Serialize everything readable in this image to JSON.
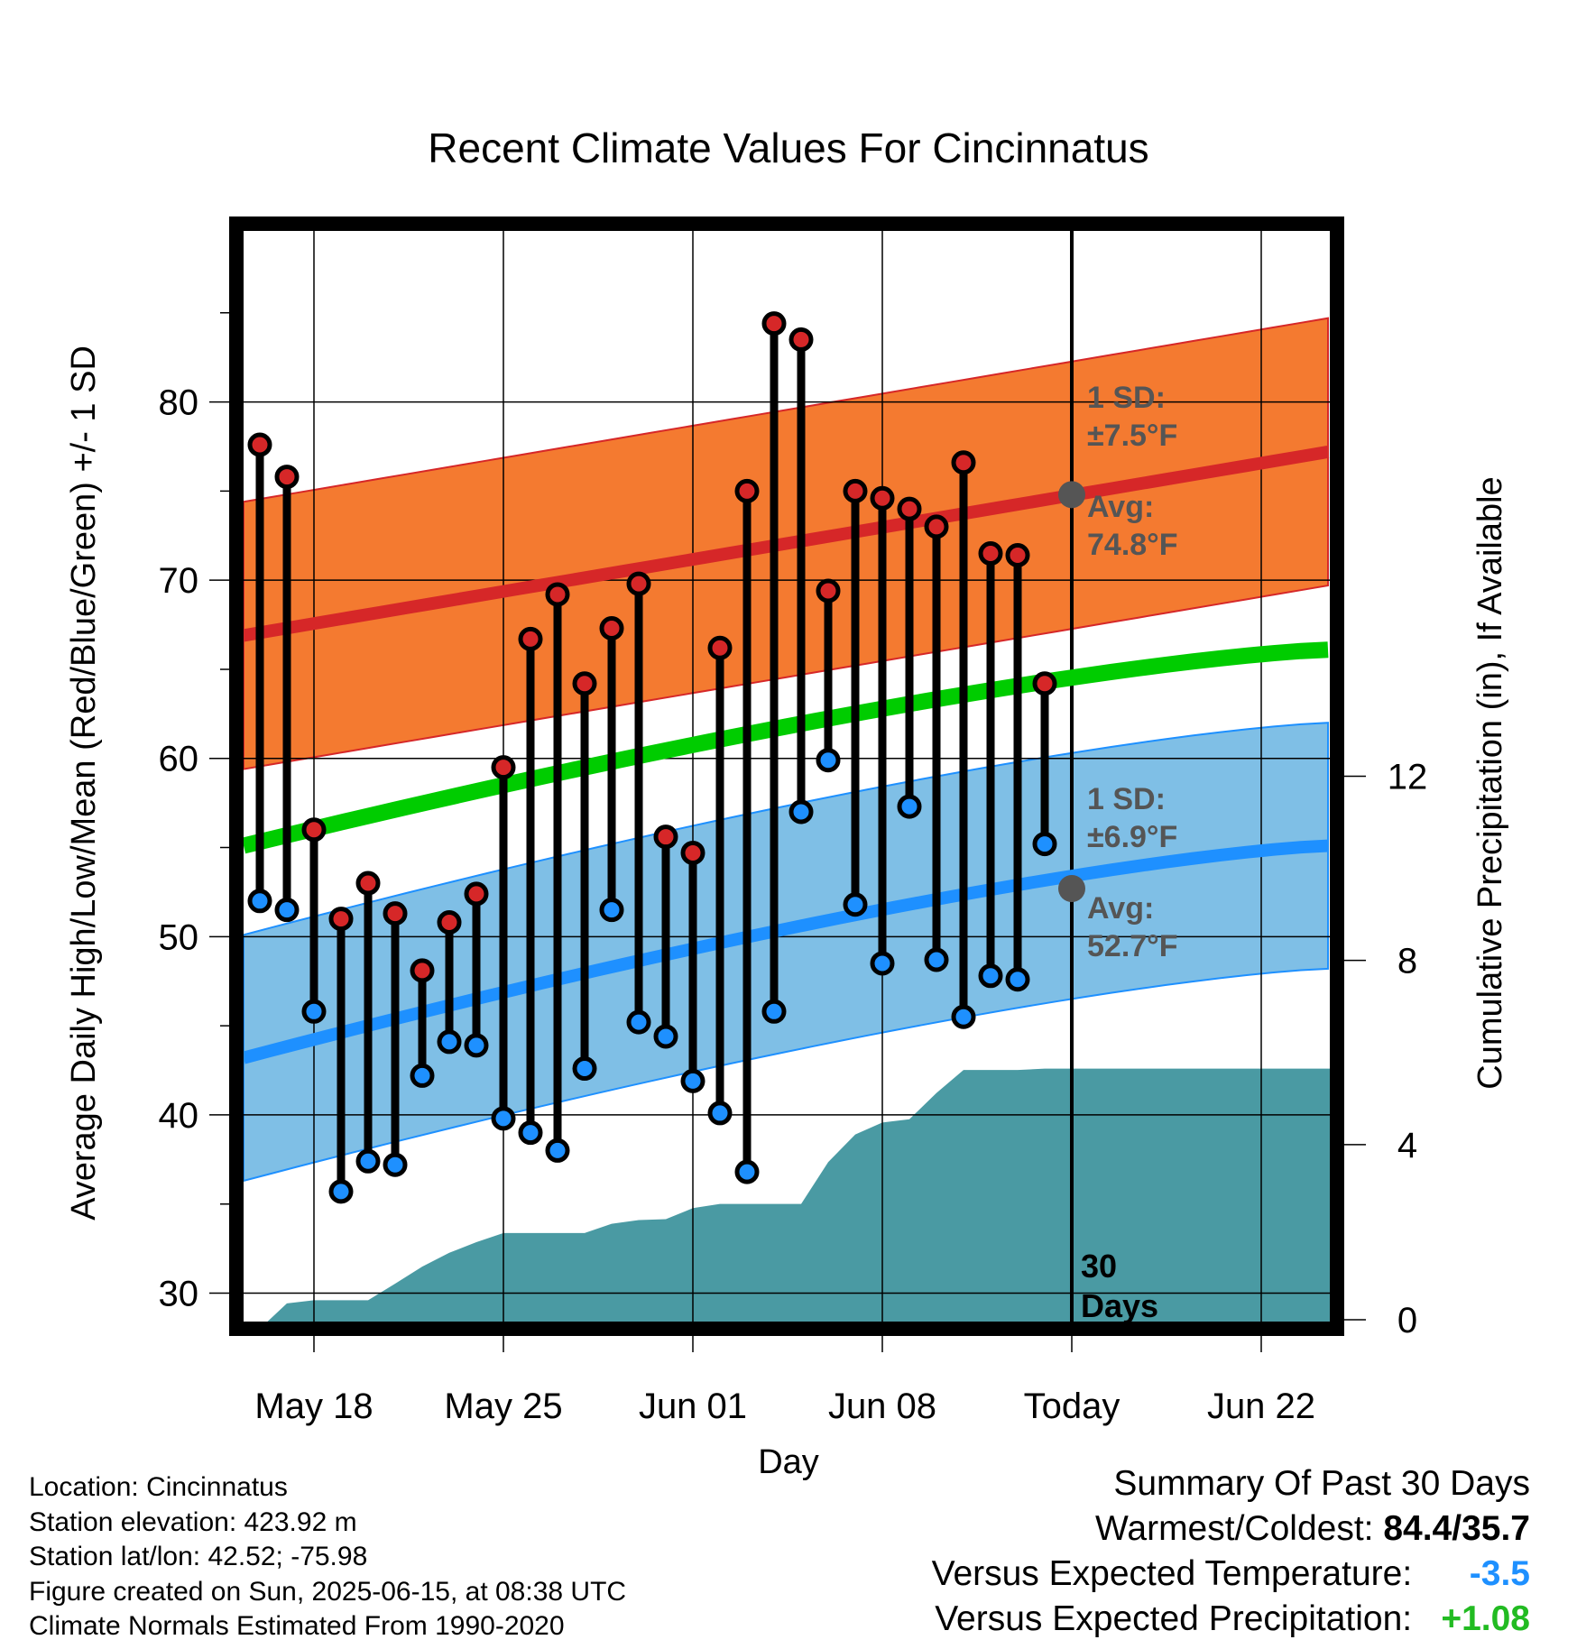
{
  "chart_data": {
    "type": "line",
    "title": "Recent Climate Values For Cincinnatus",
    "xlabel": "Day",
    "ylabel": "Average Daily High/Low/Mean (Red/Blue/Green) +/- 1 SD",
    "y2label": "Cumulative Precipitation (in), If Available",
    "x_tick_labels": [
      "May 18",
      "May 25",
      "Jun 01",
      "Jun 08",
      "Today",
      "Jun 22"
    ],
    "y_ticks": [
      30,
      40,
      50,
      60,
      70,
      80
    ],
    "y2_ticks": [
      0,
      4,
      8,
      12
    ],
    "ylim": [
      28,
      90
    ],
    "y2lim": [
      0,
      24
    ],
    "grid": true,
    "highs": [
      77.6,
      75.8,
      56.0,
      51.0,
      53.0,
      51.3,
      48.1,
      50.8,
      52.4,
      59.5,
      66.7,
      69.2,
      64.2,
      67.3,
      69.8,
      55.6,
      54.7,
      66.2,
      75.0,
      84.4,
      83.5,
      69.4,
      75.0,
      74.6,
      74.0,
      73.0,
      76.6,
      71.5,
      71.4,
      64.2
    ],
    "lows": [
      52.0,
      51.5,
      45.8,
      35.7,
      37.4,
      37.2,
      42.2,
      44.1,
      43.9,
      39.8,
      39.0,
      38.0,
      42.6,
      51.5,
      45.2,
      44.4,
      41.9,
      40.1,
      36.8,
      45.8,
      57.0,
      59.9,
      51.8,
      48.5,
      57.3,
      48.7,
      45.5,
      47.8,
      47.6,
      55.2
    ],
    "normals": {
      "high_start": 66.9,
      "high_end": 77.2,
      "high_sd": 7.5,
      "low_start": 43.2,
      "low_end": 55.1,
      "low_sd": 6.9,
      "mean_start": 55.1,
      "mean_end": 66.1
    },
    "precip": [
      0,
      0.55,
      0.62,
      0.62,
      0.62,
      0.98,
      1.35,
      1.65,
      1.88,
      2.08,
      2.08,
      2.08,
      2.08,
      2.28,
      2.36,
      2.38,
      2.62,
      2.71,
      2.71,
      2.71,
      2.71,
      3.62,
      4.22,
      4.48,
      4.55,
      5.12,
      5.62,
      5.62,
      5.62,
      5.65,
      5.65
    ],
    "precip_end": 5.65,
    "annotations": {
      "high_sd_label": "1 SD:",
      "high_sd_value": "±7.5°F",
      "high_avg_label": "Avg:",
      "high_avg_value": "74.8°F",
      "low_sd_label": "1 SD:",
      "low_sd_value": "±6.9°F",
      "low_avg_label": "Avg:",
      "low_avg_value": "52.7°F",
      "today_high_avg": 74.8,
      "today_low_avg": 52.7,
      "period_line1": "30",
      "period_line2": "Days"
    },
    "colors": {
      "high_band": "#f47a30",
      "high_line": "#d62728",
      "low_band": "#7fbfe6",
      "low_line": "#1e90ff",
      "mean_line": "#00cc00",
      "precip": "#4a9aa3",
      "high_marker": "#d62728",
      "low_marker": "#1e90ff"
    }
  },
  "footer": {
    "location": "Location: Cincinnatus",
    "elevation": "Station elevation: 423.92 m",
    "latlon": "Station lat/lon: 42.52; -75.98",
    "created": "Figure created on Sun, 2025-06-15, at 08:38 UTC",
    "normals": "Climate Normals Estimated From 1990-2020"
  },
  "summary": {
    "title": "Summary Of Past 30 Days",
    "warm_cold_label": "Warmest/Coldest:",
    "warm_cold_value": "84.4/35.7",
    "temp_label": "Versus Expected Temperature:",
    "temp_value": "-3.5",
    "temp_color": "#1e90ff",
    "precip_label": "Versus Expected Precipitation:",
    "precip_value": "+1.08",
    "precip_color": "#22bb22"
  }
}
